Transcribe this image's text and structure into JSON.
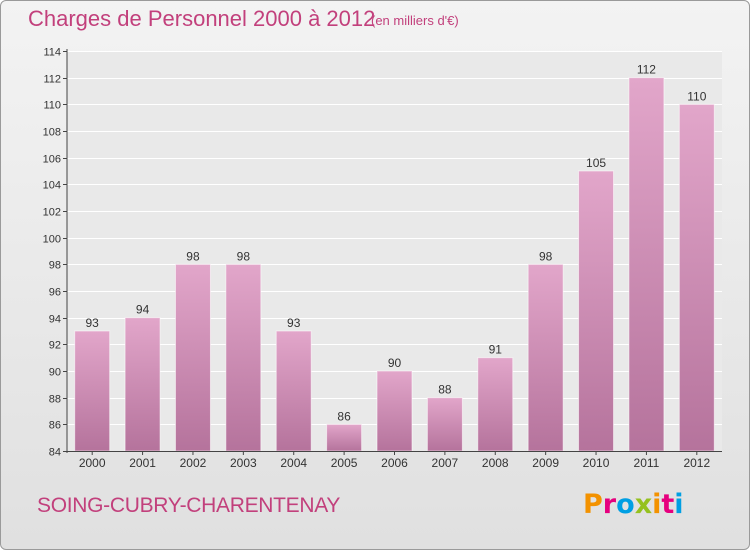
{
  "header": {
    "title": "Charges de Personnel 2000 à 2012",
    "subtitle": "(en milliers d'€)"
  },
  "footer": {
    "commune": "SOING-CUBRY-CHARENTENAY",
    "logo_text": "Proxiti",
    "logo_colors": [
      "#f39200",
      "#e6007e",
      "#009fe3",
      "#95c11f",
      "#f39200",
      "#e6007e",
      "#009fe3"
    ]
  },
  "chart_data": {
    "type": "bar",
    "categories": [
      "2000",
      "2001",
      "2002",
      "2003",
      "2004",
      "2005",
      "2006",
      "2007",
      "2008",
      "2009",
      "2010",
      "2011",
      "2012"
    ],
    "values": [
      93,
      94,
      98,
      98,
      93,
      86,
      90,
      88,
      91,
      98,
      105,
      112,
      110
    ],
    "ylim": [
      84,
      114
    ],
    "yticks": [
      84,
      86,
      88,
      90,
      92,
      94,
      96,
      98,
      100,
      102,
      104,
      106,
      108,
      110,
      112,
      114
    ],
    "grid": true,
    "bar_color_top": "#e2a6ca",
    "bar_color_bottom": "#b5739c"
  }
}
